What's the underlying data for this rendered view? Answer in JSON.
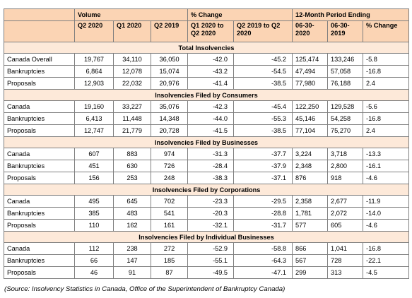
{
  "table": {
    "groups": [
      "Volume",
      "% Change",
      "12-Month Period Ending"
    ],
    "columns": [
      "Q2 2020",
      "Q1 2020",
      "Q2 2019",
      "Q1 2020 to Q2 2020",
      "Q2 2019 to Q2 2020",
      "06-30-2020",
      "06-30-2019",
      "% Change"
    ],
    "sections": [
      {
        "title": "Total Insolvencies",
        "rows": [
          [
            "Canada Overall",
            "19,767",
            "34,110",
            "36,050",
            "-42.0",
            "-45.2",
            "125,474",
            "133,246",
            "-5.8"
          ],
          [
            "Bankruptcies",
            "6,864",
            "12,078",
            "15,074",
            "-43.2",
            "-54.5",
            "47,494",
            "57,058",
            "-16.8"
          ],
          [
            "Proposals",
            "12,903",
            "22,032",
            "20,976",
            "-41.4",
            "-38.5",
            "77,980",
            "76,188",
            "2.4"
          ]
        ]
      },
      {
        "title": "Insolvencies Filed by Consumers",
        "rows": [
          [
            "Canada",
            "19,160",
            "33,227",
            "35,076",
            "-42.3",
            "-45.4",
            "122,250",
            "129,528",
            "-5.6"
          ],
          [
            "Bankruptcies",
            "6,413",
            "11,448",
            "14,348",
            "-44.0",
            "-55.3",
            "45,146",
            "54,258",
            "-16.8"
          ],
          [
            "Proposals",
            "12,747",
            "21,779",
            "20,728",
            "-41.5",
            "-38.5",
            "77,104",
            "75,270",
            "2.4"
          ]
        ]
      },
      {
        "title": "Insolvencies Filed by Businesses",
        "rows": [
          [
            "Canada",
            "607",
            "883",
            "974",
            "-31.3",
            "-37.7",
            "3,224",
            "3,718",
            "-13.3"
          ],
          [
            "Bankruptcies",
            "451",
            "630",
            "726",
            "-28.4",
            "-37.9",
            "2,348",
            "2,800",
            "-16.1"
          ],
          [
            "Proposals",
            "156",
            "253",
            "248",
            "-38.3",
            "-37.1",
            "876",
            "918",
            "-4.6"
          ]
        ]
      },
      {
        "title": "Insolvencies Filed by Corporations",
        "rows": [
          [
            "Canada",
            "495",
            "645",
            "702",
            "-23.3",
            "-29.5",
            "2,358",
            "2,677",
            "-11.9"
          ],
          [
            "Bankruptcies",
            "385",
            "483",
            "541",
            "-20.3",
            "-28.8",
            "1,781",
            "2,072",
            "-14.0"
          ],
          [
            "Proposals",
            "110",
            "162",
            "161",
            "-32.1",
            "-31.7",
            "577",
            "605",
            "-4.6"
          ]
        ]
      },
      {
        "title": "Insolvencies Filed by Individual Businesses",
        "rows": [
          [
            "Canada",
            "112",
            "238",
            "272",
            "-52.9",
            "-58.8",
            "866",
            "1,041",
            "-16.8"
          ],
          [
            "Bankruptcies",
            "66",
            "147",
            "185",
            "-55.1",
            "-64.3",
            "567",
            "728",
            "-22.1"
          ],
          [
            "Proposals",
            "46",
            "91",
            "87",
            "-49.5",
            "-47.1",
            "299",
            "313",
            "-4.5"
          ]
        ]
      }
    ]
  },
  "source": "(Source: Insolvency Statistics in Canada, Office of the Superintendent of Bankruptcy Canada)"
}
